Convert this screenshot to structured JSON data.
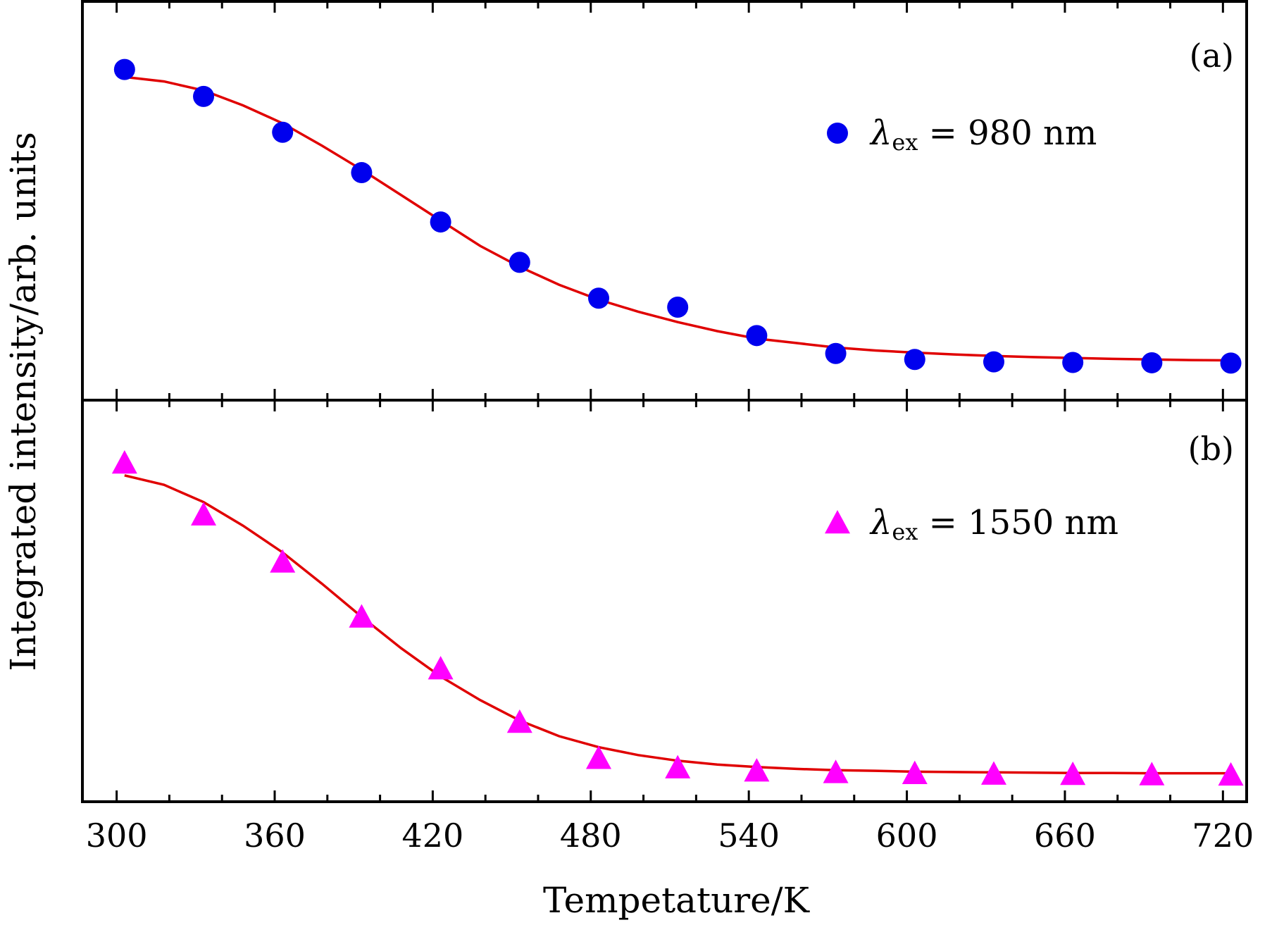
{
  "chart_data": {
    "type": "scatter",
    "xlabel": "Tempetature/K",
    "ylabel": "Integrated intensity/arb. units",
    "xlim": [
      287,
      729
    ],
    "x_ticks": [
      300,
      360,
      420,
      480,
      540,
      600,
      660,
      720
    ],
    "x_tick_labels": [
      "300",
      "360",
      "420",
      "480",
      "540",
      "600",
      "660",
      "720"
    ],
    "fit_color": "#e00000",
    "panels": [
      {
        "panel_label": "(a)",
        "legend": {
          "lambda": "λ",
          "sub": "ex",
          "rest": "= 980 nm"
        },
        "marker": "circle",
        "color": "#0000ee",
        "ylim": [
          0,
          1.05
        ],
        "x": [
          303,
          333,
          363,
          393,
          423,
          453,
          483,
          513,
          543,
          573,
          603,
          633,
          663,
          693,
          723
        ],
        "y": [
          1.0,
          0.91,
          0.79,
          0.655,
          0.49,
          0.355,
          0.235,
          0.205,
          0.11,
          0.05,
          0.03,
          0.022,
          0.02,
          0.019,
          0.018
        ],
        "fit_x": [
          303,
          318,
          333,
          348,
          363,
          378,
          393,
          408,
          423,
          438,
          453,
          468,
          483,
          498,
          513,
          528,
          543,
          558,
          573,
          588,
          603,
          618,
          633,
          648,
          663,
          678,
          693,
          708,
          723
        ],
        "fit_y": [
          0.975,
          0.96,
          0.93,
          0.88,
          0.82,
          0.745,
          0.665,
          0.58,
          0.495,
          0.41,
          0.34,
          0.28,
          0.23,
          0.19,
          0.155,
          0.125,
          0.1,
          0.085,
          0.07,
          0.06,
          0.053,
          0.047,
          0.042,
          0.038,
          0.035,
          0.032,
          0.03,
          0.028,
          0.027
        ]
      },
      {
        "panel_label": "(b)",
        "legend": {
          "lambda": "λ",
          "sub": "ex",
          "rest": "= 1550 nm"
        },
        "marker": "triangle",
        "color": "#ff00ff",
        "ylim": [
          0,
          1.05
        ],
        "x": [
          303,
          333,
          363,
          393,
          423,
          453,
          483,
          513,
          543,
          573,
          603,
          633,
          663,
          693,
          723
        ],
        "y": [
          1.0,
          0.835,
          0.685,
          0.51,
          0.345,
          0.175,
          0.06,
          0.03,
          0.02,
          0.015,
          0.012,
          0.01,
          0.009,
          0.008,
          0.007
        ],
        "fit_x": [
          303,
          318,
          333,
          348,
          363,
          378,
          393,
          408,
          423,
          438,
          453,
          468,
          483,
          498,
          513,
          528,
          543,
          558,
          573,
          588,
          603,
          618,
          633,
          648,
          663,
          678,
          693,
          708,
          723
        ],
        "fit_y": [
          0.96,
          0.93,
          0.875,
          0.8,
          0.715,
          0.615,
          0.51,
          0.41,
          0.32,
          0.245,
          0.18,
          0.13,
          0.095,
          0.07,
          0.052,
          0.04,
          0.032,
          0.026,
          0.022,
          0.02,
          0.017,
          0.016,
          0.015,
          0.014,
          0.013,
          0.013,
          0.012,
          0.012,
          0.012
        ]
      }
    ]
  }
}
